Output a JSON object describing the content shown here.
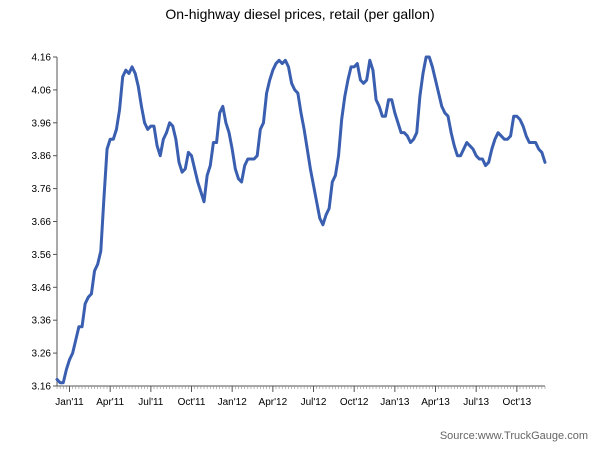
{
  "chart_data": {
    "type": "line",
    "title": "On-highway diesel prices, retail (per gallon)",
    "source": "Source:www.TruckGauge.com",
    "xlabel": "",
    "ylabel": "",
    "ylim": [
      3.16,
      4.16
    ],
    "yticks": [
      "3.16",
      "3.26",
      "3.36",
      "3.46",
      "3.56",
      "3.66",
      "3.76",
      "3.86",
      "3.96",
      "4.06",
      "4.16"
    ],
    "xticks": [
      {
        "label": "Jan'11",
        "week": 4
      },
      {
        "label": "Apr'11",
        "week": 17
      },
      {
        "label": "Jul'11",
        "week": 30
      },
      {
        "label": "Oct'11",
        "week": 43
      },
      {
        "label": "Jan'12",
        "week": 56
      },
      {
        "label": "Apr'12",
        "week": 69
      },
      {
        "label": "Jul'12",
        "week": 82
      },
      {
        "label": "Oct'12",
        "week": 95
      },
      {
        "label": "Jan'13",
        "week": 108
      },
      {
        "label": "Apr'13",
        "week": 121
      },
      {
        "label": "Jul'13",
        "week": 134
      },
      {
        "label": "Oct'13",
        "week": 147
      }
    ],
    "series": [
      {
        "name": "On-highway diesel retail price",
        "color": "#3a5fb0",
        "values": [
          3.18,
          3.17,
          3.17,
          3.21,
          3.24,
          3.26,
          3.3,
          3.34,
          3.34,
          3.41,
          3.43,
          3.44,
          3.51,
          3.53,
          3.57,
          3.73,
          3.88,
          3.91,
          3.91,
          3.94,
          4.0,
          4.1,
          4.12,
          4.11,
          4.13,
          4.11,
          4.07,
          4.01,
          3.96,
          3.94,
          3.95,
          3.95,
          3.89,
          3.86,
          3.91,
          3.93,
          3.96,
          3.95,
          3.91,
          3.84,
          3.81,
          3.82,
          3.87,
          3.86,
          3.82,
          3.78,
          3.75,
          3.72,
          3.8,
          3.83,
          3.9,
          3.9,
          3.99,
          4.01,
          3.96,
          3.93,
          3.88,
          3.82,
          3.79,
          3.78,
          3.83,
          3.85,
          3.85,
          3.85,
          3.86,
          3.94,
          3.96,
          4.05,
          4.09,
          4.12,
          4.14,
          4.15,
          4.14,
          4.15,
          4.13,
          4.08,
          4.06,
          4.05,
          3.99,
          3.94,
          3.88,
          3.82,
          3.77,
          3.72,
          3.67,
          3.65,
          3.68,
          3.7,
          3.78,
          3.8,
          3.86,
          3.97,
          4.04,
          4.09,
          4.13,
          4.13,
          4.14,
          4.09,
          4.08,
          4.09,
          4.15,
          4.12,
          4.03,
          4.01,
          3.98,
          3.98,
          4.03,
          4.03,
          3.99,
          3.96,
          3.93,
          3.93,
          3.92,
          3.9,
          3.91,
          3.93,
          4.04,
          4.11,
          4.16,
          4.16,
          4.13,
          4.09,
          4.05,
          4.01,
          3.99,
          3.98,
          3.93,
          3.89,
          3.86,
          3.86,
          3.88,
          3.9,
          3.89,
          3.88,
          3.86,
          3.85,
          3.85,
          3.83,
          3.84,
          3.88,
          3.91,
          3.93,
          3.92,
          3.91,
          3.91,
          3.92,
          3.98,
          3.98,
          3.97,
          3.95,
          3.92,
          3.9,
          3.9,
          3.9,
          3.88,
          3.87,
          3.84
        ]
      }
    ]
  }
}
